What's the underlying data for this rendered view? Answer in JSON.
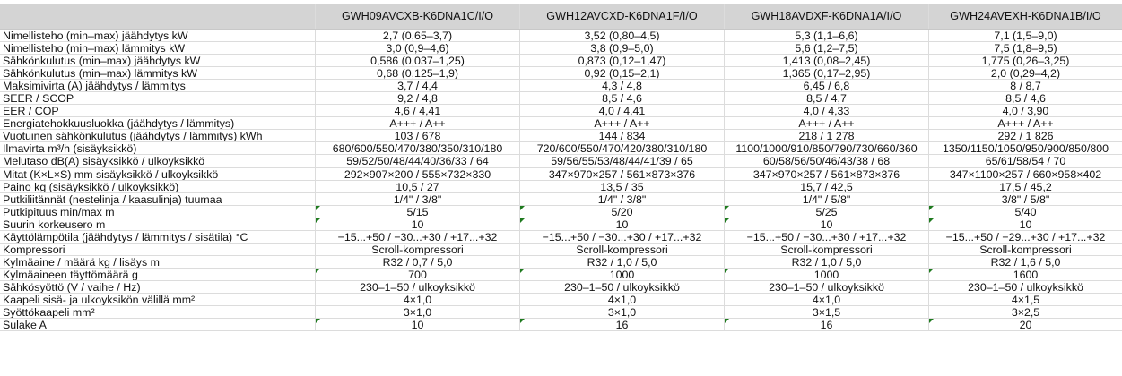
{
  "columns": [
    "",
    "GWH09AVCXB-K6DNA1C/I/O",
    "GWH12AVCXD-K6DNA1F/I/O",
    "GWH18AVDXF-K6DNA1A/I/O",
    "GWH24AVEXH-K6DNA1B/I/O"
  ],
  "rows": [
    {
      "label": "Nimellisteho (min–max) jäähdytys kW",
      "values": [
        "2,7 (0,65–3,7)",
        "3,52 (0,80–4,5)",
        "5,3 (1,1–6,6)",
        "7,1 (1,5–9,0)"
      ]
    },
    {
      "label": "Nimellisteho (min–max) lämmitys kW",
      "values": [
        "3,0 (0,9–4,6)",
        "3,8 (0,9–5,0)",
        "5,6 (1,2–7,5)",
        "7,5 (1,8–9,5)"
      ]
    },
    {
      "label": "Sähkönkulutus (min–max) jäähdytys kW",
      "values": [
        "0,586 (0,037–1,25)",
        "0,873 (0,12–1,47)",
        "1,413 (0,08–2,45)",
        "1,775 (0,26–3,25)"
      ]
    },
    {
      "label": "Sähkönkulutus (min–max) lämmitys kW",
      "values": [
        "0,68 (0,125–1,9)",
        "0,92 (0,15–2,1)",
        "1,365 (0,17–2,95)",
        "2,0 (0,29–4,2)"
      ]
    },
    {
      "label": "Maksimivirta (A) jäähdytys / lämmitys",
      "values": [
        "3,7 / 4,4",
        "4,3 / 4,8",
        "6,45 / 6,8",
        "8 / 8,7"
      ]
    },
    {
      "label": "SEER / SCOP",
      "values": [
        "9,2 / 4,8",
        "8,5 / 4,6",
        "8,5 / 4,7",
        "8,5 / 4,6"
      ]
    },
    {
      "label": "EER / COP",
      "values": [
        "4,6 / 4,41",
        "4,0 / 4,41",
        "4,0 / 4,33",
        "4,0 / 3,90"
      ]
    },
    {
      "label": "Energiatehokkuusluokka (jäähdytys / lämmitys)",
      "values": [
        "A+++ / A++",
        "A+++ / A++",
        "A+++ / A++",
        "A+++ / A++"
      ]
    },
    {
      "label": "Vuotuinen sähkönkulutus (jäähdytys / lämmitys) kWh",
      "values": [
        "103 / 678",
        "144 / 834",
        "218 / 1 278",
        "292 / 1 826"
      ]
    },
    {
      "label": "Ilmavirta m³/h (sisäyksikkö)",
      "values": [
        "680/600/550/470/380/350/310/180",
        "720/600/550/470/420/380/310/180",
        "1100/1000/910/850/790/730/660/360",
        "1350/1150/1050/950/900/850/800"
      ]
    },
    {
      "label": "Melutaso dB(A) sisäyksikkö / ulkoyksikkö",
      "values": [
        "59/52/50/48/44/40/36/33 / 64",
        "59/56/55/53/48/44/41/39 / 65",
        "60/58/56/50/46/43/38 / 68",
        "65/61/58/54 / 70"
      ]
    },
    {
      "label": "Mitat (K×L×S) mm sisäyksikkö / ulkoyksikkö",
      "values": [
        "292×907×200 / 555×732×330",
        "347×970×257 / 561×873×376",
        "347×970×257 / 561×873×376",
        "347×1100×257 / 660×958×402"
      ]
    },
    {
      "label": "Paino kg (sisäyksikkö / ulkoyksikkö)",
      "values": [
        "10,5 / 27",
        "13,5 / 35",
        "15,7 / 42,5",
        "17,5 / 45,2"
      ]
    },
    {
      "label": "Putkiliitännät (nestelinja / kaasulinja) tuumaa",
      "values": [
        "1/4\" / 3/8\"",
        "1/4\" / 3/8\"",
        "1/4\" / 5/8\"",
        "3/8\" / 5/8\""
      ]
    },
    {
      "label": "Putkipituus min/max m",
      "values": [
        "5/15",
        "5/20",
        "5/25",
        "5/40"
      ],
      "flag": true
    },
    {
      "label": "Suurin korkeusero m",
      "values": [
        "10",
        "10",
        "10",
        "10"
      ],
      "flag": true
    },
    {
      "label": "Käyttölämpötila (jäähdytys / lämmitys / sisätila) °C",
      "values": [
        "−15...+50 / −30...+30 / +17...+32",
        "−15...+50 / −30...+30 / +17...+32",
        "−15...+50 / −30...+30 / +17...+32",
        "−15...+50 / −29...+30 / +17...+32"
      ]
    },
    {
      "label": "Kompressori",
      "values": [
        "Scroll-kompressori",
        "Scroll-kompressori",
        "Scroll-kompressori",
        "Scroll-kompressori"
      ]
    },
    {
      "label": "Kylmäaine / määrä kg / lisäys m",
      "values": [
        "R32 / 0,7 / 5,0",
        "R32 / 1,0 / 5,0",
        "R32 / 1,0 / 5,0",
        "R32 / 1,6 / 5,0"
      ]
    },
    {
      "label": "Kylmäaineen täyttömäärä g",
      "values": [
        "700",
        "1000",
        "1000",
        "1600"
      ],
      "flag": true
    },
    {
      "label": "Sähkösyöttö (V / vaihe / Hz)",
      "values": [
        "230–1–50 / ulkoyksikkö",
        "230–1–50 / ulkoyksikkö",
        "230–1–50 / ulkoyksikkö",
        "230–1–50 / ulkoyksikkö"
      ]
    },
    {
      "label": "Kaapeli sisä- ja ulkoyksikön välillä mm²",
      "values": [
        "4×1,0",
        "4×1,0",
        "4×1,0",
        "4×1,5"
      ]
    },
    {
      "label": "Syöttökaapeli mm²",
      "values": [
        "3×1,0",
        "3×1,0",
        "3×1,5",
        "3×2,5"
      ]
    },
    {
      "label": "Sulake A",
      "values": [
        "10",
        "16",
        "16",
        "20"
      ],
      "flag": true
    }
  ],
  "colors": {
    "header_bg": "#d4d4d4",
    "gridline": "#dcdcdc",
    "flag_triangle": "#1e7a1e"
  }
}
